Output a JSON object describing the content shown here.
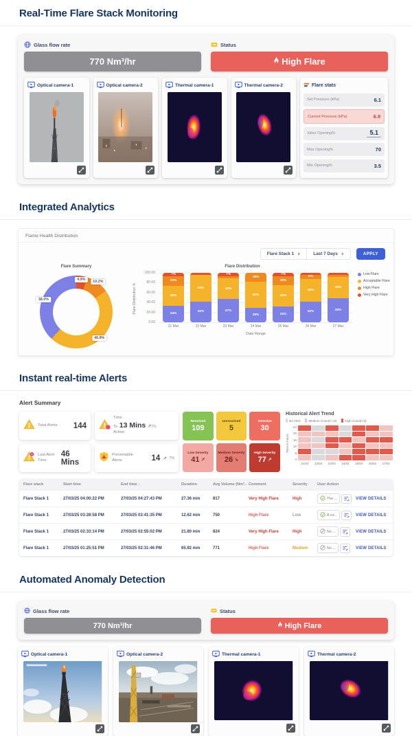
{
  "page": {
    "monitoring_title": "Real-Time Flare Stack Monitoring",
    "analytics_title": "Integrated Analytics",
    "alerts_title": "Instant real-time Alerts",
    "anomaly_title": "Automated Anomaly Detection"
  },
  "theme": {
    "title_navy": "#17365f",
    "accent_blue": "#3f5fd7",
    "status_red": "#e8615a",
    "flow_gray": "#909094"
  },
  "flow_status": {
    "flow_label": "Glass flow rate",
    "flow_value": "770 Nm³/hr",
    "status_label": "Status",
    "status_value": "High Flare"
  },
  "cameras": {
    "labels": [
      "Optical camera-1",
      "Optical camera-2",
      "Thermal camera-1",
      "Thermal camera-2"
    ]
  },
  "flare_stats": {
    "title": "Flare stats",
    "rows": [
      {
        "label": "Set Pressure (kPa)",
        "value": "6.1",
        "style": "normal"
      },
      {
        "label": "Current Pressure (kPa)",
        "value": "6.9",
        "style": "highlight"
      },
      {
        "label": "Valve Opening%",
        "value": "5.1",
        "style": "input"
      },
      {
        "label": "Max Opening%",
        "value": "70",
        "style": "normal"
      },
      {
        "label": "Min Opening%",
        "value": "3.5",
        "style": "normal"
      }
    ]
  },
  "analytics": {
    "panel_title": "Flame Health Distribution",
    "stack_filter": "Flare Stack 1",
    "range_filter": "Last 7 Days",
    "apply_label": "APPLY"
  },
  "chart_data": [
    {
      "type": "pie",
      "donut": true,
      "title": "Flare Summary",
      "labels": [
        "Very High Flare",
        "High Flare",
        "Acceptable Flare",
        "Low Flare"
      ],
      "values": [
        4.9,
        10.2,
        46.8,
        38.0
      ],
      "colors": [
        "#e4502a",
        "#ee8a20",
        "#f5b32b",
        "#7d80e4"
      ]
    },
    {
      "type": "bar",
      "stacked": true,
      "title": "Flare Distribution",
      "xlabel": "Date Range",
      "ylabel": "Flare Distribution %",
      "ylim": [
        0,
        100
      ],
      "yticks": [
        "100.00",
        "80.00",
        "60.00",
        "40.00",
        "20.00",
        "0.00"
      ],
      "categories": [
        "21 Mar",
        "22 Mar",
        "23 Mar",
        "24 Mar",
        "25 Mar",
        "26 Mar",
        "27 Mar"
      ],
      "series": [
        {
          "name": "Low Flare",
          "color": "#7d80e4",
          "values": [
            34,
            42,
            47,
            29,
            32,
            42,
            49
          ]
        },
        {
          "name": "Acceptable Flare",
          "color": "#f5b32b",
          "values": [
            40,
            54,
            42,
            53,
            43,
            46,
            43
          ]
        },
        {
          "name": "High Flare",
          "color": "#ee8a20",
          "values": [
            19,
            0,
            4,
            18,
            18,
            8,
            4
          ]
        },
        {
          "name": "Very High Flare",
          "color": "#e4502a",
          "values": [
            7,
            4,
            7,
            0,
            7,
            4,
            4
          ]
        }
      ],
      "legend_position": "right"
    },
    {
      "type": "heatmap",
      "title": "Historical Alert Trend",
      "ylabel": "Time in hours",
      "rows": [
        "24",
        "20",
        "16",
        "12",
        "8",
        "4"
      ],
      "cols": [
        "21/03",
        "22/03",
        "23/03",
        "24/03",
        "25/03",
        "26/03",
        "27/03"
      ],
      "legend": [
        {
          "label": "No Alert",
          "color": "#dadadc"
        },
        {
          "label": "Medium Count(<=3)",
          "color": "#f0c5c0"
        },
        {
          "label": "High Count(>3)",
          "color": "#e05a4e"
        }
      ],
      "cells": [
        [
          2,
          0,
          2,
          0,
          2,
          2,
          1
        ],
        [
          1,
          1,
          1,
          0,
          2,
          1,
          1
        ],
        [
          1,
          0,
          2,
          2,
          1,
          2,
          2
        ],
        [
          1,
          1,
          2,
          1,
          2,
          1,
          1
        ],
        [
          2,
          0,
          0,
          1,
          2,
          2,
          2
        ],
        [
          1,
          0,
          1,
          2,
          2,
          1,
          1
        ]
      ]
    }
  ],
  "alert_summary": {
    "title": "Alert Summary",
    "stat_cards": [
      {
        "label": "Total Alerts",
        "value": "144",
        "icon": "warning-triangle",
        "trend": ""
      },
      {
        "label_lines": [
          "Time",
          "To",
          "Action"
        ],
        "value": "13 Mins",
        "icon": "warning-bell",
        "trend": "7%"
      },
      {
        "label": "Last Alert Time",
        "value": "46 Mins",
        "icon": "warning-alarm",
        "trend": ""
      },
      {
        "label": "Preventable Alerts",
        "value": "14",
        "icon": "shield",
        "trend": "7%"
      }
    ],
    "status_tiles": [
      {
        "label": "Resolved",
        "value": "109",
        "bg": "#85c355",
        "fg": "#ffffff",
        "trend": ""
      },
      {
        "label": "Unresolved",
        "value": "5",
        "bg": "#f4c83c",
        "fg": "#5b4a17",
        "trend": ""
      },
      {
        "label": "Overdue",
        "value": "30",
        "bg": "#ee6f62",
        "fg": "#ffffff",
        "trend": ""
      },
      {
        "label": "Low Severity",
        "value": "41",
        "bg": "#f2a9a4",
        "fg": "#7a2c26",
        "trend": "up"
      },
      {
        "label": "Medium Severity",
        "value": "26",
        "bg": "#e37d74",
        "fg": "#6e1f18",
        "trend": "down"
      },
      {
        "label": "High Severity",
        "value": "77",
        "bg": "#bf3a2f",
        "fg": "#ffffff",
        "trend": "up"
      }
    ]
  },
  "alert_table": {
    "headers": [
      "Flare stack",
      "Start time",
      "End time ↓",
      "Duration",
      "Avg Volume (Nm³..",
      "Comment",
      "Severity",
      "User Action",
      ""
    ],
    "rows": [
      {
        "stack": "Flare Stack 1",
        "start": "27/03/25 04:00:22 PM",
        "end": "27/03/25 04:27:43 PM",
        "duration": "27.36 min",
        "volume": "817",
        "comment": "Very High Flare",
        "severity": "High",
        "action_text": "The ...",
        "action_state": "done",
        "details_label": "VIEW DETAILS"
      },
      {
        "stack": "Flare Stack 1",
        "start": "27/03/25 03:28:58 PM",
        "end": "27/03/25 03:41:35 PM",
        "duration": "12.62 min",
        "volume": "750",
        "comment": "High Flare",
        "severity": "Low",
        "action_text": "A co...",
        "action_state": "done",
        "details_label": "VIEW DETAILS"
      },
      {
        "stack": "Flare Stack 1",
        "start": "27/03/25 02:33:14 PM",
        "end": "27/03/25 02:55:02 PM",
        "duration": "21.80 min",
        "volume": "824",
        "comment": "Very High Flare",
        "severity": "High",
        "action_text": "No ...",
        "action_state": "none",
        "details_label": "VIEW DETAILS"
      },
      {
        "stack": "Flare Stack 1",
        "start": "27/03/25 01:25:51 PM",
        "end": "27/03/25 02:31:46 PM",
        "duration": "65.92 min",
        "volume": "771",
        "comment": "High Flare",
        "severity": "Medium",
        "action_text": "No ...",
        "action_state": "none",
        "details_label": "VIEW DETAILS"
      }
    ]
  }
}
